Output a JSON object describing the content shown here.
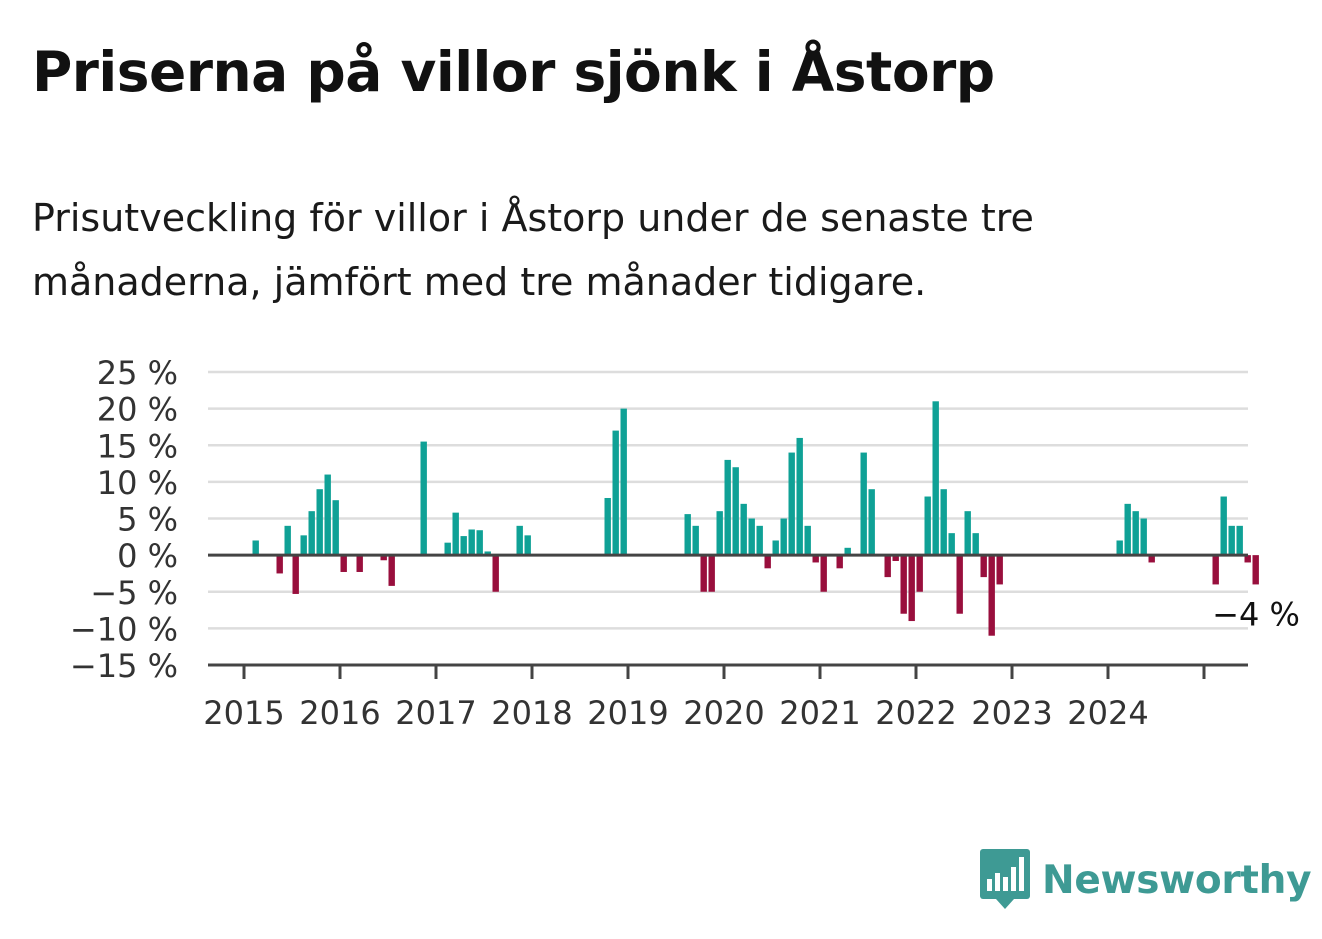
{
  "title": "Priserna på villor sjönk i Åstorp",
  "subtitle": "Prisutveckling för villor i Åstorp under de senaste tre månaderna, jämfört med tre månader tidigare.",
  "brand": {
    "name": "Newsworthy",
    "color": "#3e9a94",
    "icon": "newsworthy-logo-icon"
  },
  "colors": {
    "positive": "#0fa196",
    "negative": "#990f3d",
    "grid": "#dddddd",
    "axis": "#444444"
  },
  "chart_data": {
    "type": "bar",
    "ylim": [
      -15,
      25
    ],
    "y_ticks": [
      25,
      20,
      15,
      10,
      5,
      0,
      -5,
      -10,
      -15
    ],
    "y_tick_labels": [
      "25 %",
      "20 %",
      "15 %",
      "10 %",
      "5 %",
      "0 %",
      "−5 %",
      "−10 %",
      "−15 %"
    ],
    "x_ticks": [
      "2015",
      "2016",
      "2017",
      "2018",
      "2019",
      "2020",
      "2021",
      "2022",
      "2023",
      "2024"
    ],
    "grid": true,
    "last_value_label": "−4 %",
    "series": [
      {
        "start": "2015-01",
        "values": [
          0,
          2,
          0,
          0,
          -2.5,
          4,
          -5.3,
          2.7,
          6,
          9,
          11,
          7.5,
          -2.3,
          0,
          -2.3,
          0,
          0,
          -0.7,
          -4.2,
          0,
          0,
          0,
          15.5,
          0,
          0,
          1.7,
          5.8,
          2.6,
          3.5,
          3.4,
          0.5,
          -5,
          0,
          0,
          4,
          2.7,
          0,
          0,
          0,
          0,
          0,
          0,
          0,
          0,
          0,
          7.8,
          17,
          20,
          0,
          0,
          0,
          0,
          0,
          0,
          0,
          5.6,
          4,
          -5,
          -5,
          6,
          13,
          12,
          7,
          5,
          4,
          -1.8,
          2,
          5,
          14,
          16,
          4,
          -1,
          -5,
          0,
          -1.8,
          1,
          0,
          14,
          9,
          0,
          -3,
          -0.8,
          -8,
          -9,
          -5,
          8,
          21,
          9,
          3,
          -8,
          6,
          3,
          -3,
          -11,
          -4,
          0,
          0,
          0,
          0,
          0,
          0,
          0,
          0,
          0,
          0,
          0,
          0,
          0,
          0,
          2,
          7,
          6,
          5,
          -1,
          0,
          0,
          0,
          0,
          0,
          0,
          0,
          -4,
          8,
          4,
          4,
          -1,
          -4
        ]
      }
    ]
  }
}
